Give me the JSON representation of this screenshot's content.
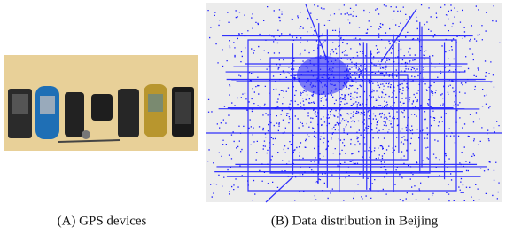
{
  "figure": {
    "panels": [
      {
        "caption": "(A) GPS devices"
      },
      {
        "caption": "(B) Data distribution in Beijing"
      }
    ]
  }
}
